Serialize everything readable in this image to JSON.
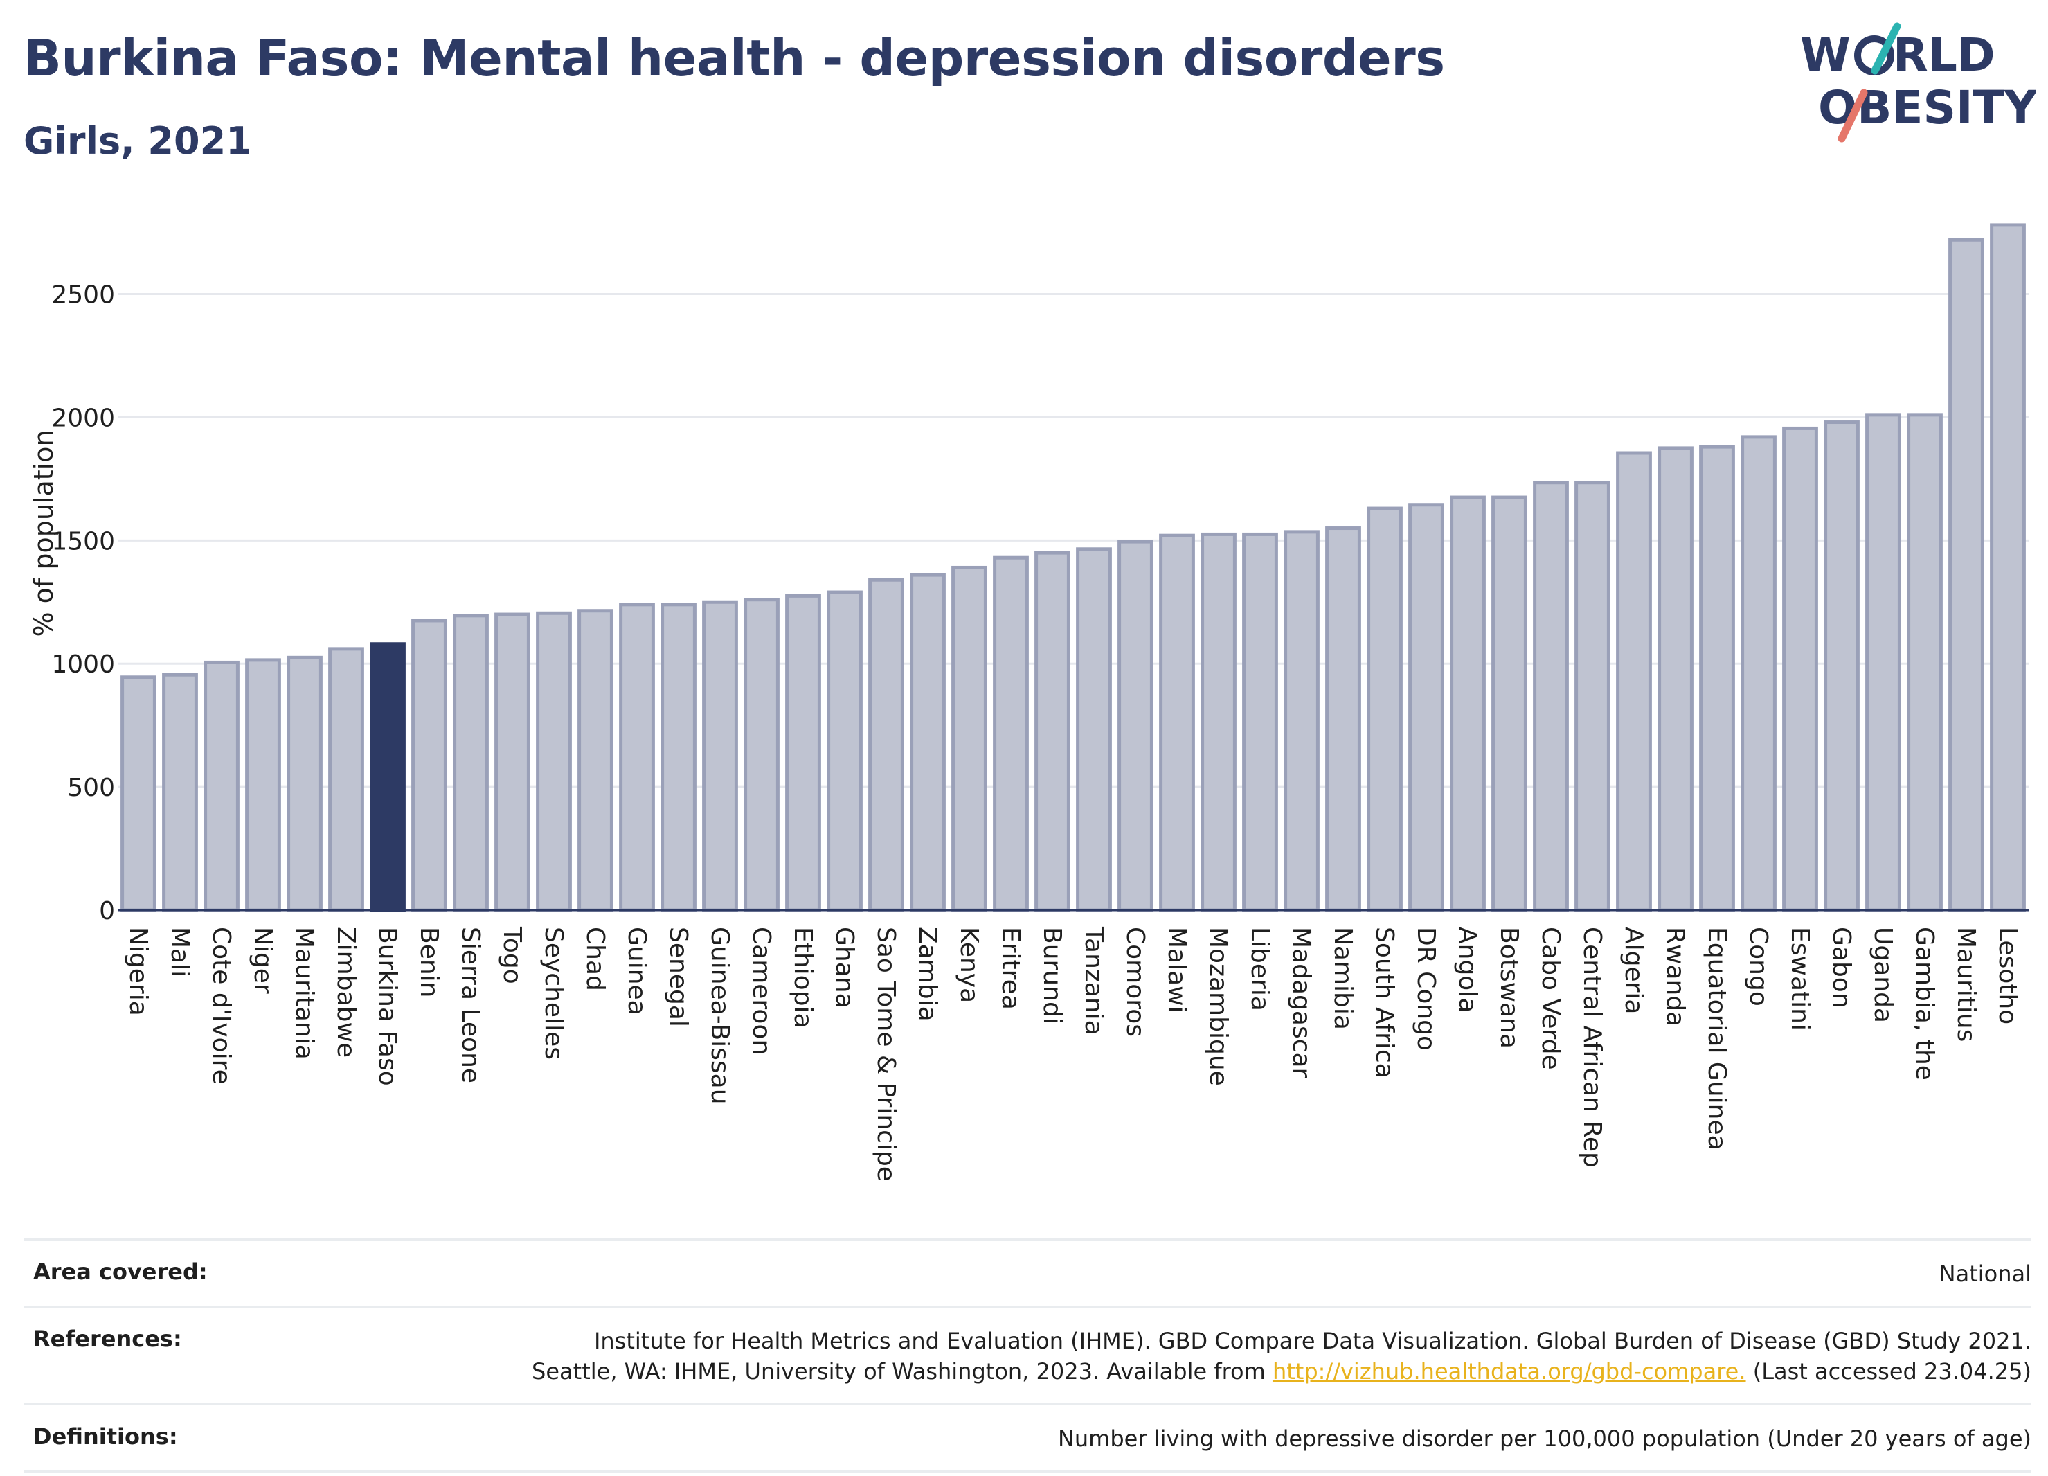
{
  "header": {
    "title": "Burkina Faso: Mental health - depression disorders",
    "subtitle": "Girls, 2021"
  },
  "logo": {
    "line1": "W RLD",
    "line2": "OBESITY",
    "colors": {
      "navy": "#2d3a64",
      "teal": "#2bb3b1",
      "coral": "#e5766a"
    }
  },
  "chart_data": {
    "type": "bar",
    "ylabel": "% of population",
    "ylim": [
      0,
      2850
    ],
    "yticks": [
      0,
      500,
      1000,
      1500,
      2000,
      2500
    ],
    "grid": true,
    "highlight": "Burkina Faso",
    "colors": {
      "bar": "#bfc3d1",
      "bar_stroke": "#9aa0b8",
      "highlight": "#2d3a64"
    },
    "categories": [
      "Nigeria",
      "Mali",
      "Cote d'Ivoire",
      "Niger",
      "Mauritania",
      "Zimbabwe",
      "Burkina Faso",
      "Benin",
      "Sierra Leone",
      "Togo",
      "Seychelles",
      "Chad",
      "Guinea",
      "Senegal",
      "Guinea-Bissau",
      "Cameroon",
      "Ethiopia",
      "Ghana",
      "Sao Tome & Principe",
      "Zambia",
      "Kenya",
      "Eritrea",
      "Burundi",
      "Tanzania",
      "Comoros",
      "Malawi",
      "Mozambique",
      "Liberia",
      "Madagascar",
      "Namibia",
      "South Africa",
      "DR Congo",
      "Angola",
      "Botswana",
      "Cabo Verde",
      "Central African Rep",
      "Algeria",
      "Rwanda",
      "Equatorial Guinea",
      "Congo",
      "Eswatini",
      "Gabon",
      "Uganda",
      "Gambia, the",
      "Mauritius",
      "Lesotho"
    ],
    "values": [
      945,
      955,
      1005,
      1015,
      1025,
      1060,
      1080,
      1175,
      1195,
      1200,
      1205,
      1215,
      1240,
      1240,
      1250,
      1260,
      1275,
      1290,
      1340,
      1360,
      1390,
      1430,
      1450,
      1465,
      1495,
      1520,
      1525,
      1525,
      1535,
      1550,
      1630,
      1645,
      1675,
      1675,
      1735,
      1735,
      1855,
      1875,
      1880,
      1920,
      1955,
      1980,
      2010,
      2010,
      2720,
      2780
    ]
  },
  "footer": {
    "area_label": "Area covered:",
    "area_value": "National",
    "references_label": "References:",
    "references_line1": "Institute for Health Metrics and Evaluation (IHME). GBD Compare Data Visualization. Global Burden of Disease (GBD) Study 2021.",
    "references_line2_pre": "Seattle, WA: IHME, University of Washington, 2023. Available from ",
    "references_link": "http://vizhub.healthdata.org/gbd-compare.",
    "references_line2_post": " (Last accessed 23.04.25)",
    "definitions_label": "Definitions:",
    "definitions_value": "Number living with depressive disorder per 100,000 population (Under 20 years of age)"
  }
}
